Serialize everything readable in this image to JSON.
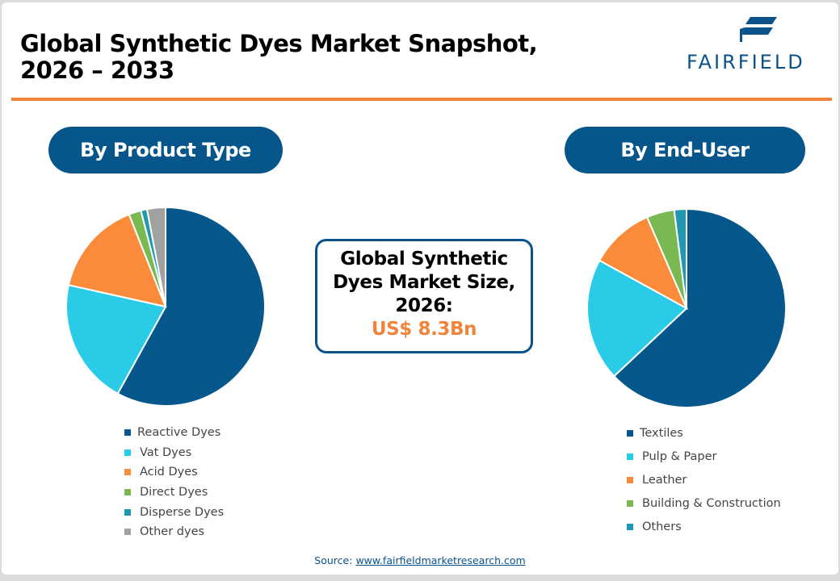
{
  "header": {
    "title_line1": "Global Synthetic Dyes Market Snapshot,",
    "title_line2": "2026 – 2033",
    "logo_text": "FAIRFIELD",
    "accent_color": "#f0843b",
    "brand_color": "#06568c"
  },
  "left_panel": {
    "heading": "By Product Type"
  },
  "right_panel": {
    "heading": "By End-User"
  },
  "center_box": {
    "line1": "Global Synthetic",
    "line2": "Dyes Market Size,",
    "line3": "2026:",
    "value": "US$ 8.3Bn"
  },
  "source": {
    "label": "Source:",
    "link": "www.fairfieldmarketresearch.com"
  },
  "chart_data": [
    {
      "type": "pie",
      "title": "By Product Type",
      "categories": [
        "Reactive Dyes",
        "Vat Dyes",
        "Acid Dyes",
        "Direct Dyes",
        "Disperse Dyes",
        "Other dyes"
      ],
      "values": [
        58,
        20.5,
        15.5,
        2,
        1,
        3
      ],
      "colors": [
        "#06588c",
        "#29cbe6",
        "#f98b3a",
        "#7ab852",
        "#1f98b0",
        "#a1a1a1"
      ],
      "legend_position": "bottom",
      "start_angle": "12 o'clock, clockwise"
    },
    {
      "type": "pie",
      "title": "By End-User",
      "categories": [
        "Textiles",
        "Pulp & Paper",
        "Leather",
        "Building & Construction",
        "Others"
      ],
      "values": [
        63,
        20,
        10.5,
        4.5,
        2
      ],
      "colors": [
        "#06588c",
        "#29cbe6",
        "#f98b3a",
        "#7ab852",
        "#1f98b0"
      ],
      "legend_position": "bottom",
      "start_angle": "12 o'clock, clockwise"
    }
  ]
}
